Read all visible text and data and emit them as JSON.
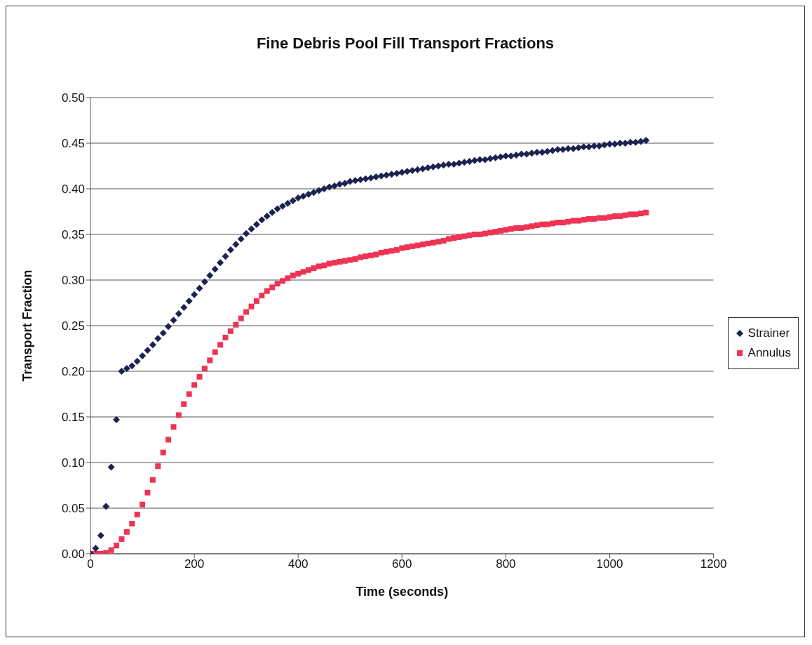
{
  "chart_data": {
    "type": "scatter",
    "title": "Fine Debris Pool Fill Transport Fractions",
    "xlabel": "Time (seconds)",
    "ylabel": "Transport Fraction",
    "x": [
      0,
      10,
      20,
      30,
      40,
      50,
      60,
      70,
      80,
      90,
      100,
      110,
      120,
      130,
      140,
      150,
      160,
      170,
      180,
      190,
      200,
      210,
      220,
      230,
      240,
      250,
      260,
      270,
      280,
      290,
      300,
      310,
      320,
      330,
      340,
      350,
      360,
      370,
      380,
      390,
      400,
      410,
      420,
      430,
      440,
      450,
      460,
      470,
      480,
      490,
      500,
      510,
      520,
      530,
      540,
      550,
      560,
      570,
      580,
      590,
      600,
      610,
      620,
      630,
      640,
      650,
      660,
      670,
      680,
      690,
      700,
      710,
      720,
      730,
      740,
      750,
      760,
      770,
      780,
      790,
      800,
      810,
      820,
      830,
      840,
      850,
      860,
      870,
      880,
      890,
      900,
      910,
      920,
      930,
      940,
      950,
      960,
      970,
      980,
      990,
      1000,
      1010,
      1020,
      1030,
      1040,
      1050,
      1060,
      1070
    ],
    "series": [
      {
        "name": "Strainer",
        "color": "#1c2150",
        "marker": "diamond",
        "values": [
          0,
          0.006,
          0.02,
          0.052,
          0.095,
          0.147,
          0.2,
          0.203,
          0.206,
          0.211,
          0.217,
          0.223,
          0.229,
          0.236,
          0.242,
          0.249,
          0.256,
          0.263,
          0.27,
          0.277,
          0.284,
          0.291,
          0.298,
          0.305,
          0.312,
          0.319,
          0.326,
          0.333,
          0.339,
          0.345,
          0.351,
          0.356,
          0.361,
          0.366,
          0.37,
          0.374,
          0.378,
          0.381,
          0.384,
          0.387,
          0.39,
          0.392,
          0.394,
          0.396,
          0.398,
          0.4,
          0.402,
          0.403,
          0.405,
          0.406,
          0.408,
          0.409,
          0.41,
          0.411,
          0.412,
          0.413,
          0.414,
          0.415,
          0.416,
          0.417,
          0.418,
          0.419,
          0.42,
          0.421,
          0.422,
          0.423,
          0.424,
          0.425,
          0.426,
          0.427,
          0.427,
          0.428,
          0.429,
          0.43,
          0.431,
          0.432,
          0.432,
          0.433,
          0.434,
          0.435,
          0.436,
          0.436,
          0.437,
          0.438,
          0.438,
          0.439,
          0.44,
          0.44,
          0.441,
          0.442,
          0.443,
          0.443,
          0.444,
          0.444,
          0.445,
          0.446,
          0.446,
          0.447,
          0.447,
          0.448,
          0.449,
          0.449,
          0.45,
          0.45,
          0.451,
          0.451,
          0.452,
          0.453
        ]
      },
      {
        "name": "Annulus",
        "color": "#ee3355",
        "marker": "square",
        "values": [
          0,
          0,
          0,
          0.001,
          0.004,
          0.009,
          0.016,
          0.024,
          0.033,
          0.043,
          0.054,
          0.067,
          0.081,
          0.096,
          0.111,
          0.125,
          0.139,
          0.152,
          0.164,
          0.175,
          0.185,
          0.194,
          0.203,
          0.212,
          0.221,
          0.229,
          0.237,
          0.244,
          0.251,
          0.258,
          0.265,
          0.271,
          0.277,
          0.283,
          0.288,
          0.292,
          0.296,
          0.299,
          0.302,
          0.305,
          0.307,
          0.309,
          0.311,
          0.313,
          0.315,
          0.316,
          0.318,
          0.319,
          0.32,
          0.321,
          0.322,
          0.323,
          0.325,
          0.326,
          0.327,
          0.328,
          0.33,
          0.331,
          0.332,
          0.333,
          0.335,
          0.336,
          0.337,
          0.338,
          0.339,
          0.34,
          0.341,
          0.342,
          0.343,
          0.345,
          0.346,
          0.347,
          0.348,
          0.349,
          0.35,
          0.35,
          0.351,
          0.352,
          0.353,
          0.354,
          0.355,
          0.356,
          0.357,
          0.357,
          0.358,
          0.359,
          0.36,
          0.361,
          0.361,
          0.362,
          0.363,
          0.363,
          0.364,
          0.365,
          0.365,
          0.366,
          0.367,
          0.367,
          0.368,
          0.368,
          0.369,
          0.37,
          0.37,
          0.371,
          0.372,
          0.372,
          0.373,
          0.374
        ]
      }
    ],
    "xlim": [
      0,
      1200
    ],
    "xticks": [
      0,
      200,
      400,
      600,
      800,
      1000,
      1200
    ],
    "ylim": [
      0,
      0.5
    ],
    "yticks": [
      {
        "value": 0,
        "label": "0.00"
      },
      {
        "value": 0.05,
        "label": "0.05"
      },
      {
        "value": 0.1,
        "label": "0.10"
      },
      {
        "value": 0.15,
        "label": "0.15"
      },
      {
        "value": 0.2,
        "label": "0.20"
      },
      {
        "value": 0.25,
        "label": "0.25"
      },
      {
        "value": 0.3,
        "label": "0.30"
      },
      {
        "value": 0.35,
        "label": "0.35"
      },
      {
        "value": 0.4,
        "label": "0.40"
      },
      {
        "value": 0.45,
        "label": "0.45"
      },
      {
        "value": 0.5,
        "label": "0.50"
      }
    ],
    "grid": "y",
    "legend": "right"
  }
}
